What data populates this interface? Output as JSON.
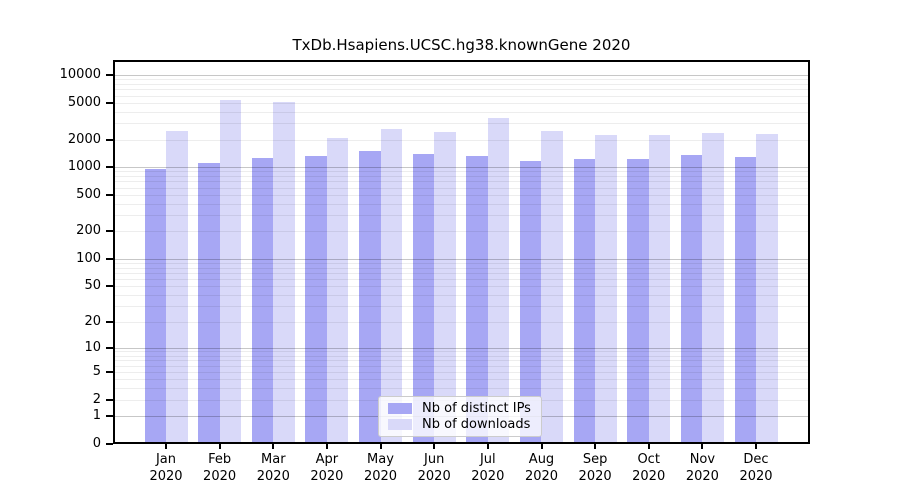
{
  "title": "TxDb.Hsapiens.UCSC.hg38.knownGene 2020",
  "chart_data": {
    "type": "bar",
    "title": "TxDb.Hsapiens.UCSC.hg38.knownGene 2020",
    "categories": [
      "Jan 2020",
      "Feb 2020",
      "Mar 2020",
      "Apr 2020",
      "May 2020",
      "Jun 2020",
      "Jul 2020",
      "Aug 2020",
      "Sep 2020",
      "Oct 2020",
      "Nov 2020",
      "Dec 2020"
    ],
    "x_tick_months": [
      "Jan",
      "Feb",
      "Mar",
      "Apr",
      "May",
      "Jun",
      "Jul",
      "Aug",
      "Sep",
      "Oct",
      "Nov",
      "Dec"
    ],
    "x_tick_year": "2020",
    "series": [
      {
        "name": "Nb of distinct IPs",
        "color": "#a7a7f4",
        "values": [
          960,
          1100,
          1250,
          1310,
          1490,
          1400,
          1310,
          1160,
          1220,
          1220,
          1340,
          1290
        ]
      },
      {
        "name": "Nb of downloads",
        "color": "#d9d9f9",
        "values": [
          2500,
          5400,
          5100,
          2080,
          2600,
          2400,
          3400,
          2450,
          2220,
          2250,
          2330,
          2290
        ]
      }
    ],
    "xlabel": "",
    "ylabel": "",
    "yscale": "log1p",
    "ylim": [
      0,
      14600
    ],
    "yticks": [
      0,
      1,
      2,
      5,
      10,
      20,
      50,
      100,
      200,
      500,
      1000,
      2000,
      5000,
      10000
    ],
    "grid": "on",
    "legend_position": "lower center"
  },
  "legend": {
    "items": [
      "Nb of distinct IPs",
      "Nb of downloads"
    ]
  },
  "colors": {
    "background": "#ffffff",
    "bar_distinct_ips": "#a7a7f4",
    "bar_downloads": "#d9d9f9",
    "grid_major": "rgba(0,0,0,0.22)",
    "grid_minor": "rgba(0,0,0,0.07)",
    "frame": "#000000",
    "legend_border": "#cccccc",
    "legend_background": "rgba(255,255,255,0.8)"
  }
}
